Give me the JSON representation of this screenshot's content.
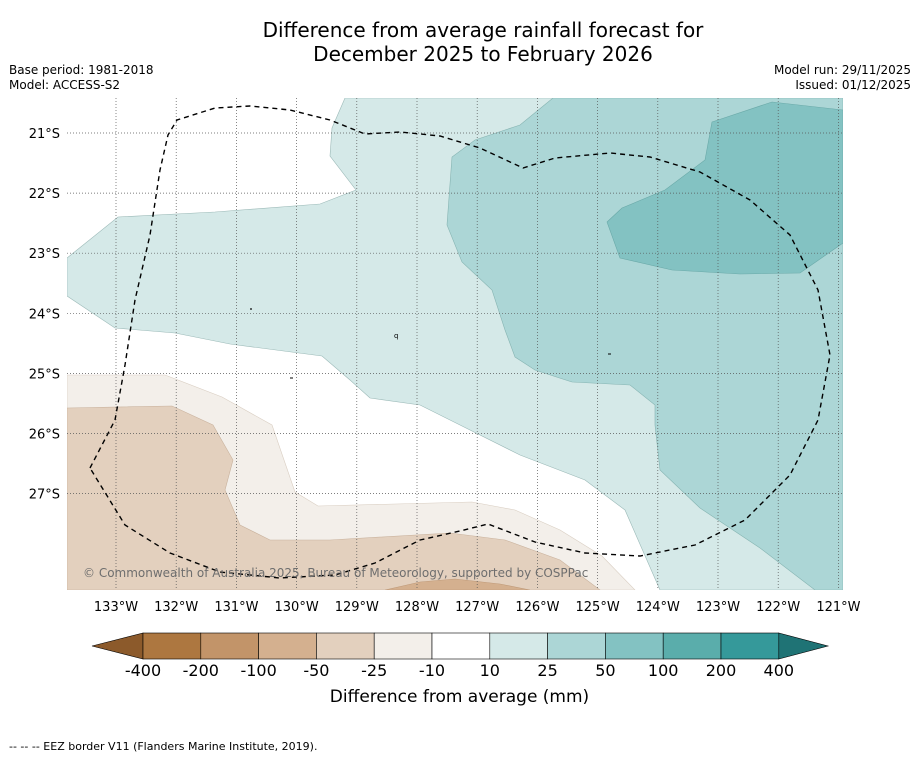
{
  "title": {
    "line1": "Difference from average rainfall forecast for",
    "line2": "December 2025 to February 2026"
  },
  "meta": {
    "base_period": "Base period: 1981-2018",
    "model": "Model: ACCESS-S2",
    "model_run": "Model run: 29/11/2025",
    "issued": "Issued: 01/12/2025"
  },
  "copyright": "© Commonwealth of Australia 2025, Bureau of Meteorology, supported by COSPPac",
  "map": {
    "lat_labels": [
      "21°S",
      "22°S",
      "23°S",
      "24°S",
      "25°S",
      "26°S",
      "27°S"
    ],
    "lon_labels": [
      "133°W",
      "132°W",
      "131°W",
      "130°W",
      "129°W",
      "128°W",
      "127°W",
      "126°W",
      "125°W",
      "124°W",
      "123°W",
      "122°W",
      "121°W"
    ],
    "island_label": "q"
  },
  "legend": {
    "ticks": [
      "-400",
      "-200",
      "-100",
      "-50",
      "-25",
      "-10",
      "10",
      "25",
      "50",
      "100",
      "200",
      "400"
    ],
    "colors": [
      "#8c5a2b",
      "#ad7740",
      "#c29469",
      "#d4b08f",
      "#e3d0be",
      "#f3efea",
      "#ffffff",
      "#d5e9e8",
      "#acd6d6",
      "#83c2c2",
      "#5aadab",
      "#35999a",
      "#1f7375"
    ],
    "title": "Difference from average (mm)"
  },
  "eez_note": "--  --  -- EEZ border V11 (Flanders Marine Institute, 2019)."
}
